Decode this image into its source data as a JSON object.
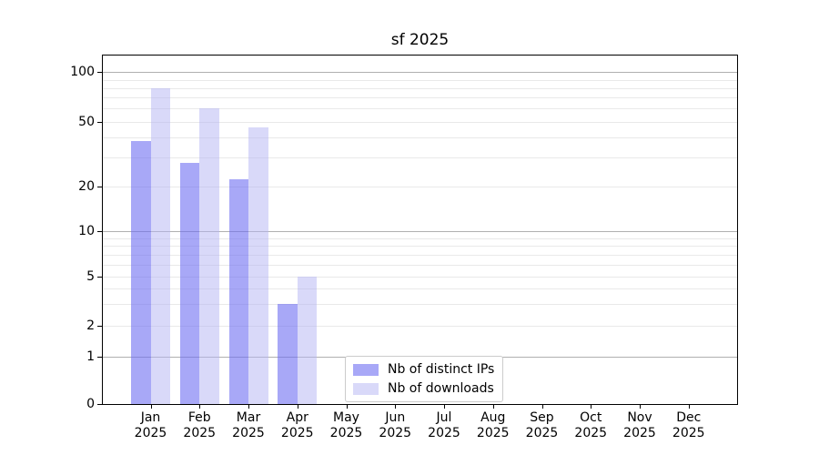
{
  "chart_data": {
    "type": "bar",
    "title": "sf 2025",
    "categories": [
      "Jan",
      "Feb",
      "Mar",
      "Apr",
      "May",
      "Jun",
      "Jul",
      "Aug",
      "Sep",
      "Oct",
      "Nov",
      "Dec"
    ],
    "category_year": "2025",
    "series": [
      {
        "name": "Nb of distinct IPs",
        "color": "#6e6ef2",
        "fill_alpha": 0.6,
        "values": [
          38,
          28,
          22,
          3,
          0,
          0,
          0,
          0,
          0,
          0,
          0,
          0
        ]
      },
      {
        "name": "Nb of downloads",
        "color": "#b4b4f4",
        "fill_alpha": 0.5,
        "values": [
          80,
          60,
          46,
          5,
          0,
          0,
          0,
          0,
          0,
          0,
          0,
          0
        ]
      }
    ],
    "xlabel": "",
    "ylabel": "",
    "y_axis": {
      "scale": "log-like with zero baseline",
      "tick_labels": [
        "0",
        "1",
        "2",
        "5",
        "10",
        "20",
        "50",
        "100"
      ],
      "tick_values": [
        0,
        1,
        2,
        5,
        10,
        20,
        50,
        100
      ],
      "major_grid_values": [
        1,
        10,
        100
      ],
      "minor_grid_values": [
        3,
        4,
        6,
        7,
        8,
        9,
        30,
        40,
        60,
        70,
        80,
        90
      ],
      "ylim": [
        0,
        100
      ]
    },
    "grid": {
      "on": true,
      "major_color": "#b0b0b0",
      "minor_color": "#e9e9e9"
    },
    "legend": {
      "position": "inside-bottom-center",
      "border_color": "#cccccc",
      "background": "#ffffff"
    }
  }
}
